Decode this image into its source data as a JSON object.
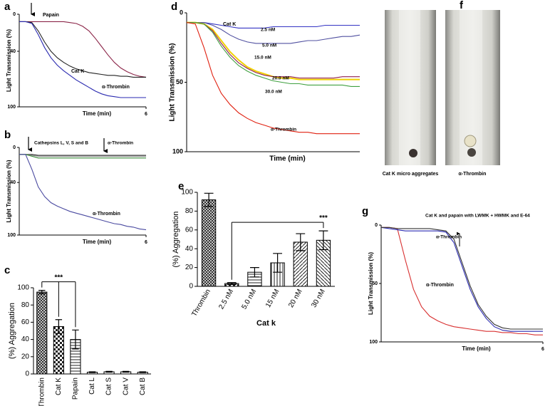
{
  "chart_data": [
    {
      "label": "a",
      "type": "line",
      "xlabel": "Time (min)",
      "ylabel": "Light Transmission (%)",
      "xlim": [
        0,
        6
      ],
      "xticks": [
        6
      ],
      "ylim": [
        100,
        0
      ],
      "yticks": [
        0,
        40,
        100
      ],
      "x": [
        0,
        0.3,
        0.6,
        0.9,
        1.2,
        1.5,
        1.8,
        2.1,
        2.4,
        2.7,
        3.0,
        3.3,
        3.6,
        3.9,
        4.2,
        4.5,
        4.8,
        5.1,
        5.4,
        5.7,
        6.0
      ],
      "series": [
        {
          "name": "Papain",
          "color": "#8b2548",
          "values": [
            8,
            8,
            8,
            8,
            8,
            8,
            8,
            8,
            9,
            10,
            13,
            18,
            26,
            35,
            44,
            52,
            58,
            62,
            65,
            67,
            68
          ]
        },
        {
          "name": "Cat K",
          "color": "#222222",
          "values": [
            8,
            8,
            9,
            18,
            30,
            40,
            47,
            52,
            56,
            59,
            61,
            63,
            64,
            65,
            66,
            66,
            67,
            67,
            68,
            68,
            68
          ]
        },
        {
          "name": "α-Thrombin",
          "color": "#2a2ab0",
          "values": [
            8,
            8,
            10,
            22,
            36,
            47,
            55,
            61,
            66,
            71,
            75,
            79,
            83,
            86,
            88,
            89,
            90,
            90,
            90,
            90,
            90
          ]
        }
      ]
    },
    {
      "label": "b",
      "type": "line",
      "xlabel": "Time (min)",
      "ylabel": "Light Transmission (%)",
      "xlim": [
        0,
        6
      ],
      "xticks": [
        6
      ],
      "ylim": [
        100,
        0
      ],
      "yticks": [
        0,
        40,
        100
      ],
      "annotations": [
        {
          "text": "Cathepsins L, V, S and B"
        },
        {
          "text": "α-Thrombin"
        }
      ],
      "x": [
        0,
        0.3,
        0.6,
        0.9,
        1.2,
        1.5,
        1.8,
        2.1,
        2.4,
        2.7,
        3.0,
        3.3,
        3.6,
        3.9,
        4.2,
        4.5,
        4.8,
        5.1,
        5.4,
        5.7,
        6.0
      ],
      "series": [
        {
          "color": "#333333",
          "values": [
            8,
            8,
            8,
            9,
            9,
            9,
            9,
            9,
            9,
            9,
            9,
            9,
            9,
            9,
            9,
            9,
            9,
            9,
            9,
            9,
            9
          ]
        },
        {
          "color": "#888888",
          "values": [
            8,
            8,
            9,
            10,
            10,
            10,
            10,
            10,
            10,
            10,
            10,
            10,
            10,
            10,
            10,
            10,
            10,
            10,
            10,
            10,
            10
          ]
        },
        {
          "color": "#3a8a3a",
          "values": [
            8,
            8,
            10,
            12,
            12,
            12,
            12,
            12,
            12,
            12,
            12,
            12,
            12,
            12,
            12,
            12,
            12,
            12,
            12,
            12,
            12
          ]
        },
        {
          "name": "α-Thrombin",
          "color": "#4a4aa0",
          "values": [
            8,
            8,
            25,
            45,
            56,
            63,
            67,
            70,
            73,
            75,
            77,
            79,
            81,
            83,
            85,
            87,
            88,
            90,
            91,
            93,
            94
          ]
        }
      ]
    },
    {
      "label": "c",
      "type": "bar",
      "ylabel": "(%) Aggregation",
      "categories": [
        "Thrombin",
        "Cat K",
        "Papain",
        "Cat L",
        "Cat S",
        "Cat V",
        "Cat B"
      ],
      "values": [
        95,
        55,
        40,
        2,
        2.5,
        2.5,
        2
      ],
      "errors": [
        2,
        8,
        11,
        0.5,
        0.5,
        0.5,
        0.5
      ],
      "ylim": [
        0,
        100
      ],
      "yticks": [
        0,
        20,
        40,
        60,
        80,
        100
      ],
      "significance": {
        "text": "***",
        "between": [
          "Thrombin",
          "Cat K",
          "Papain"
        ]
      }
    },
    {
      "label": "d",
      "type": "line",
      "xlabel": "Time (min)",
      "ylabel": "Light Transmission (%)",
      "xlim": [
        0,
        10
      ],
      "ylim": [
        100,
        0
      ],
      "yticks": [
        0,
        50,
        100
      ],
      "annotations": [
        {
          "text": "Cat K"
        }
      ],
      "x": [
        0,
        0.5,
        1,
        1.5,
        2,
        2.5,
        3,
        3.5,
        4,
        4.5,
        5,
        5.5,
        6,
        6.5,
        7,
        7.5,
        8,
        8.5,
        9,
        9.5,
        10
      ],
      "series": [
        {
          "name": "2.5 nM",
          "color": "#3434c4",
          "values": [
            7,
            7,
            7,
            8,
            9,
            10,
            11,
            11,
            11,
            11,
            10,
            10,
            10,
            10,
            10,
            10,
            9,
            9,
            9,
            9,
            9
          ]
        },
        {
          "name": "5.0 nM",
          "color": "#5050a0",
          "values": [
            7,
            7,
            7,
            9,
            12,
            16,
            19,
            21,
            22,
            22,
            22,
            22,
            22,
            21,
            20,
            20,
            19,
            18,
            17,
            17,
            16
          ]
        },
        {
          "name": "15.0 nM",
          "color": "#f0d000",
          "values": [
            7,
            7,
            8,
            12,
            20,
            28,
            34,
            39,
            42,
            44,
            46,
            47,
            47,
            48,
            48,
            48,
            48,
            48,
            48,
            48,
            48
          ]
        },
        {
          "name": "20.0 nM",
          "color": "#902050",
          "values": [
            7,
            7,
            8,
            13,
            22,
            30,
            36,
            40,
            43,
            45,
            46,
            46,
            46,
            47,
            47,
            47,
            47,
            47,
            46,
            46,
            46
          ]
        },
        {
          "name": "30.0 nM",
          "color": "#40a040",
          "values": [
            7,
            7,
            8,
            14,
            24,
            32,
            38,
            42,
            45,
            47,
            49,
            50,
            51,
            51,
            52,
            52,
            52,
            52,
            52,
            53,
            53
          ]
        },
        {
          "name": "α-Thrombin",
          "color": "#e02010",
          "values": [
            7,
            8,
            25,
            45,
            58,
            66,
            72,
            76,
            79,
            81,
            83,
            84,
            85,
            86,
            86,
            87,
            87,
            87,
            87,
            87,
            87
          ]
        }
      ]
    },
    {
      "label": "e",
      "type": "bar",
      "ylabel": "(%) Aggregation",
      "xlabel": "Cat k",
      "categories": [
        "Thrombin",
        "2.5 nM",
        "5.0 nM",
        "15 nM",
        "20 nM",
        "30 nM"
      ],
      "values": [
        92,
        3,
        15,
        25,
        47,
        49
      ],
      "errors": [
        7,
        1,
        5,
        10,
        9,
        10
      ],
      "ylim": [
        0,
        100
      ],
      "yticks": [
        0,
        20,
        40,
        60,
        80,
        100
      ],
      "significance": {
        "text": "***",
        "between": [
          "2.5 nM",
          "30 nM"
        ]
      }
    },
    {
      "label": "f",
      "type": "photo",
      "captions": [
        "Cat K micro aggregates",
        "α-Thrombin"
      ]
    },
    {
      "label": "g",
      "type": "line",
      "xlabel": "Time (min)",
      "ylabel": "Light Transmission (%)",
      "xlim": [
        0,
        6
      ],
      "xticks": [
        6
      ],
      "ylim": [
        100,
        0
      ],
      "yticks": [
        0,
        50,
        100
      ],
      "annotations": [
        {
          "text": "Cat K and papain with LWMK + HWMK and E-64"
        },
        {
          "text": "α-Thrombin"
        }
      ],
      "x": [
        0,
        0.3,
        0.6,
        0.9,
        1.2,
        1.5,
        1.8,
        2.1,
        2.4,
        2.7,
        3.0,
        3.3,
        3.6,
        3.9,
        4.2,
        4.5,
        4.8,
        5.1,
        5.4,
        5.7,
        6.0
      ],
      "series": [
        {
          "name": "α-Thrombin",
          "color": "#d83030",
          "values": [
            2,
            2,
            3,
            30,
            55,
            70,
            78,
            82,
            85,
            87,
            88,
            89,
            90,
            91,
            91,
            92,
            92,
            93,
            93,
            94,
            94
          ]
        },
        {
          "color": "#2a2ab0",
          "values": [
            2,
            3,
            4,
            5,
            5,
            5,
            5,
            5,
            6,
            15,
            35,
            55,
            70,
            80,
            87,
            90,
            91,
            91,
            91,
            91,
            91
          ]
        },
        {
          "color": "#333333",
          "values": [
            2,
            2,
            3,
            3,
            3,
            3,
            3,
            4,
            5,
            12,
            32,
            52,
            68,
            78,
            85,
            88,
            89,
            89,
            89,
            89,
            89
          ]
        }
      ]
    }
  ]
}
